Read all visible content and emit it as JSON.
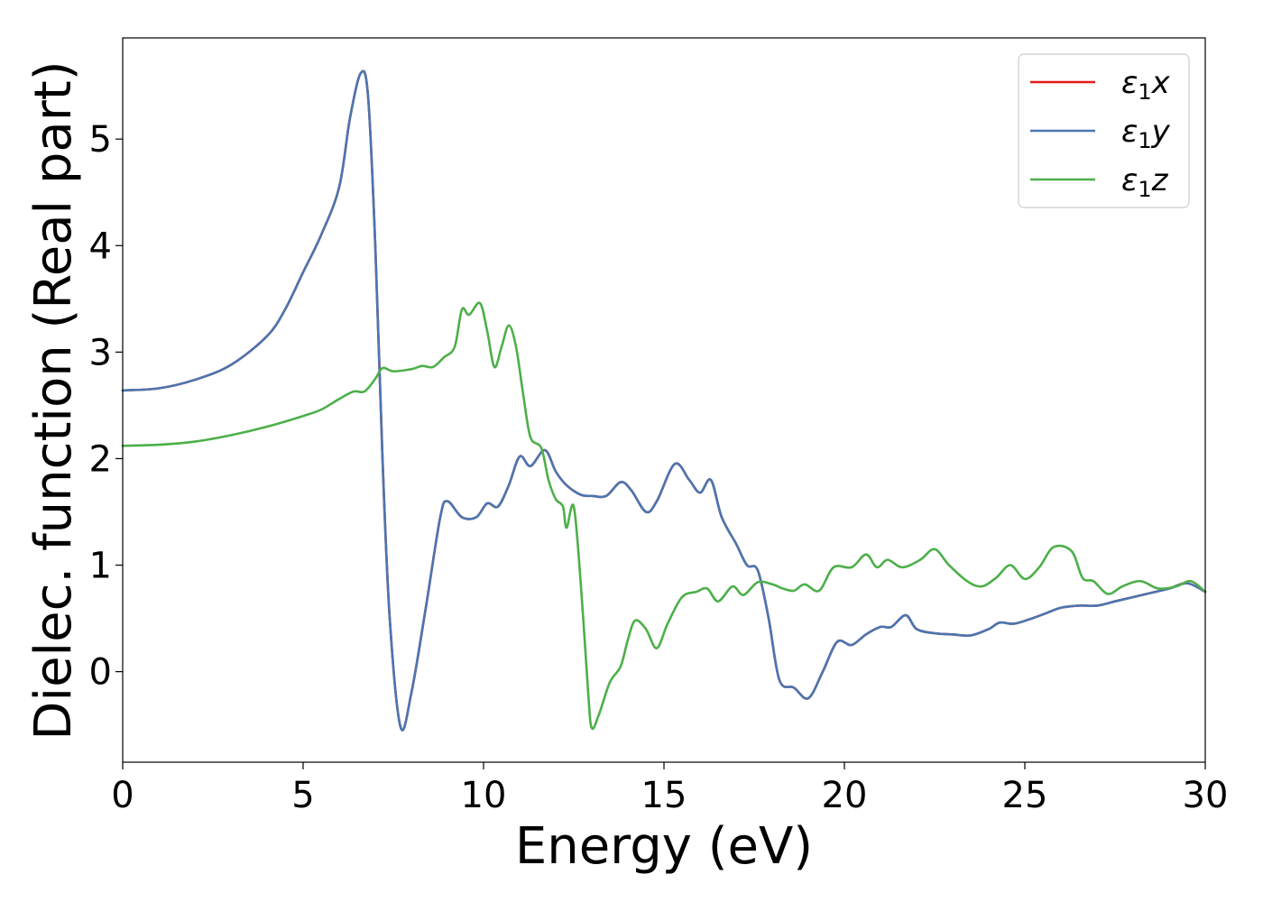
{
  "chart_data": {
    "type": "line",
    "title": "",
    "xlabel": "Energy (eV)",
    "ylabel": "Dielec. function (Real part)",
    "xlim": [
      0,
      30
    ],
    "ylim": [
      -0.85,
      5.95
    ],
    "xticks": [
      0,
      5,
      10,
      15,
      20,
      25,
      30
    ],
    "yticks": [
      0,
      1,
      2,
      3,
      4,
      5
    ],
    "grid": false,
    "legend_position": "top-right",
    "series": [
      {
        "name": "ε1x",
        "legend_main": "ε",
        "legend_sub": "1",
        "legend_suffix": "x",
        "color": "#e41a1c",
        "points": [
          [
            0,
            2.64
          ],
          [
            1,
            2.66
          ],
          [
            2,
            2.74
          ],
          [
            3,
            2.88
          ],
          [
            4,
            3.15
          ],
          [
            4.5,
            3.4
          ],
          [
            5,
            3.75
          ],
          [
            5.5,
            4.1
          ],
          [
            6,
            4.55
          ],
          [
            6.3,
            5.2
          ],
          [
            6.6,
            5.62
          ],
          [
            6.8,
            5.4
          ],
          [
            7,
            4.0
          ],
          [
            7.2,
            2.0
          ],
          [
            7.4,
            0.5
          ],
          [
            7.7,
            -0.52
          ],
          [
            8.0,
            -0.2
          ],
          [
            8.4,
            0.6
          ],
          [
            8.8,
            1.45
          ],
          [
            9.0,
            1.6
          ],
          [
            9.4,
            1.45
          ],
          [
            9.8,
            1.45
          ],
          [
            10.1,
            1.58
          ],
          [
            10.4,
            1.55
          ],
          [
            10.7,
            1.75
          ],
          [
            11.0,
            2.02
          ],
          [
            11.3,
            1.93
          ],
          [
            11.7,
            2.08
          ],
          [
            12.0,
            1.88
          ],
          [
            12.3,
            1.75
          ],
          [
            12.7,
            1.66
          ],
          [
            13.0,
            1.65
          ],
          [
            13.4,
            1.65
          ],
          [
            13.8,
            1.78
          ],
          [
            14.1,
            1.7
          ],
          [
            14.5,
            1.5
          ],
          [
            14.8,
            1.6
          ],
          [
            15.3,
            1.95
          ],
          [
            15.7,
            1.8
          ],
          [
            16.0,
            1.68
          ],
          [
            16.3,
            1.8
          ],
          [
            16.6,
            1.45
          ],
          [
            17.0,
            1.2
          ],
          [
            17.3,
            1.0
          ],
          [
            17.6,
            0.95
          ],
          [
            17.9,
            0.5
          ],
          [
            18.2,
            -0.08
          ],
          [
            18.6,
            -0.15
          ],
          [
            19.0,
            -0.25
          ],
          [
            19.4,
            0.0
          ],
          [
            19.8,
            0.28
          ],
          [
            20.2,
            0.25
          ],
          [
            20.6,
            0.35
          ],
          [
            21.0,
            0.42
          ],
          [
            21.3,
            0.42
          ],
          [
            21.7,
            0.53
          ],
          [
            22.0,
            0.4
          ],
          [
            22.5,
            0.36
          ],
          [
            23.0,
            0.35
          ],
          [
            23.5,
            0.34
          ],
          [
            24.0,
            0.4
          ],
          [
            24.3,
            0.46
          ],
          [
            24.7,
            0.45
          ],
          [
            25.2,
            0.5
          ],
          [
            25.6,
            0.55
          ],
          [
            26.0,
            0.6
          ],
          [
            26.5,
            0.62
          ],
          [
            27.0,
            0.62
          ],
          [
            27.5,
            0.66
          ],
          [
            28.0,
            0.7
          ],
          [
            28.5,
            0.74
          ],
          [
            29.0,
            0.78
          ],
          [
            29.5,
            0.83
          ],
          [
            30.0,
            0.75
          ]
        ]
      },
      {
        "name": "ε1y",
        "legend_main": "ε",
        "legend_sub": "1",
        "legend_suffix": "y",
        "color": "#4a76b0",
        "points": [
          [
            0,
            2.64
          ],
          [
            1,
            2.66
          ],
          [
            2,
            2.74
          ],
          [
            3,
            2.88
          ],
          [
            4,
            3.15
          ],
          [
            4.5,
            3.4
          ],
          [
            5,
            3.75
          ],
          [
            5.5,
            4.1
          ],
          [
            6,
            4.55
          ],
          [
            6.3,
            5.2
          ],
          [
            6.6,
            5.62
          ],
          [
            6.8,
            5.4
          ],
          [
            7,
            4.0
          ],
          [
            7.2,
            2.0
          ],
          [
            7.4,
            0.5
          ],
          [
            7.7,
            -0.52
          ],
          [
            8.0,
            -0.2
          ],
          [
            8.4,
            0.6
          ],
          [
            8.8,
            1.45
          ],
          [
            9.0,
            1.6
          ],
          [
            9.4,
            1.45
          ],
          [
            9.8,
            1.45
          ],
          [
            10.1,
            1.58
          ],
          [
            10.4,
            1.55
          ],
          [
            10.7,
            1.75
          ],
          [
            11.0,
            2.02
          ],
          [
            11.3,
            1.93
          ],
          [
            11.7,
            2.08
          ],
          [
            12.0,
            1.88
          ],
          [
            12.3,
            1.75
          ],
          [
            12.7,
            1.66
          ],
          [
            13.0,
            1.65
          ],
          [
            13.4,
            1.65
          ],
          [
            13.8,
            1.78
          ],
          [
            14.1,
            1.7
          ],
          [
            14.5,
            1.5
          ],
          [
            14.8,
            1.6
          ],
          [
            15.3,
            1.95
          ],
          [
            15.7,
            1.8
          ],
          [
            16.0,
            1.68
          ],
          [
            16.3,
            1.8
          ],
          [
            16.6,
            1.45
          ],
          [
            17.0,
            1.2
          ],
          [
            17.3,
            1.0
          ],
          [
            17.6,
            0.95
          ],
          [
            17.9,
            0.5
          ],
          [
            18.2,
            -0.08
          ],
          [
            18.6,
            -0.15
          ],
          [
            19.0,
            -0.25
          ],
          [
            19.4,
            0.0
          ],
          [
            19.8,
            0.28
          ],
          [
            20.2,
            0.25
          ],
          [
            20.6,
            0.35
          ],
          [
            21.0,
            0.42
          ],
          [
            21.3,
            0.42
          ],
          [
            21.7,
            0.53
          ],
          [
            22.0,
            0.4
          ],
          [
            22.5,
            0.36
          ],
          [
            23.0,
            0.35
          ],
          [
            23.5,
            0.34
          ],
          [
            24.0,
            0.4
          ],
          [
            24.3,
            0.46
          ],
          [
            24.7,
            0.45
          ],
          [
            25.2,
            0.5
          ],
          [
            25.6,
            0.55
          ],
          [
            26.0,
            0.6
          ],
          [
            26.5,
            0.62
          ],
          [
            27.0,
            0.62
          ],
          [
            27.5,
            0.66
          ],
          [
            28.0,
            0.7
          ],
          [
            28.5,
            0.74
          ],
          [
            29.0,
            0.78
          ],
          [
            29.5,
            0.83
          ],
          [
            30.0,
            0.75
          ]
        ]
      },
      {
        "name": "ε1z",
        "legend_main": "ε",
        "legend_sub": "1",
        "legend_suffix": "z",
        "color": "#4daf4a",
        "points": [
          [
            0,
            2.12
          ],
          [
            1,
            2.13
          ],
          [
            2,
            2.16
          ],
          [
            3,
            2.22
          ],
          [
            4,
            2.3
          ],
          [
            5,
            2.4
          ],
          [
            5.5,
            2.46
          ],
          [
            6.0,
            2.56
          ],
          [
            6.4,
            2.63
          ],
          [
            6.7,
            2.63
          ],
          [
            7.0,
            2.75
          ],
          [
            7.2,
            2.85
          ],
          [
            7.5,
            2.82
          ],
          [
            8.0,
            2.84
          ],
          [
            8.3,
            2.87
          ],
          [
            8.6,
            2.86
          ],
          [
            8.9,
            2.95
          ],
          [
            9.2,
            3.05
          ],
          [
            9.4,
            3.4
          ],
          [
            9.6,
            3.35
          ],
          [
            9.9,
            3.46
          ],
          [
            10.1,
            3.2
          ],
          [
            10.3,
            2.86
          ],
          [
            10.5,
            3.05
          ],
          [
            10.7,
            3.25
          ],
          [
            10.9,
            3.05
          ],
          [
            11.1,
            2.6
          ],
          [
            11.3,
            2.2
          ],
          [
            11.6,
            2.1
          ],
          [
            11.8,
            1.8
          ],
          [
            12.0,
            1.62
          ],
          [
            12.2,
            1.55
          ],
          [
            12.3,
            1.35
          ],
          [
            12.5,
            1.55
          ],
          [
            12.7,
            0.8
          ],
          [
            12.9,
            -0.2
          ],
          [
            13.0,
            -0.53
          ],
          [
            13.2,
            -0.4
          ],
          [
            13.5,
            -0.1
          ],
          [
            13.8,
            0.05
          ],
          [
            14.0,
            0.3
          ],
          [
            14.2,
            0.48
          ],
          [
            14.5,
            0.4
          ],
          [
            14.8,
            0.22
          ],
          [
            15.1,
            0.45
          ],
          [
            15.5,
            0.7
          ],
          [
            15.9,
            0.75
          ],
          [
            16.2,
            0.78
          ],
          [
            16.5,
            0.66
          ],
          [
            16.9,
            0.8
          ],
          [
            17.2,
            0.72
          ],
          [
            17.6,
            0.84
          ],
          [
            18.0,
            0.82
          ],
          [
            18.3,
            0.78
          ],
          [
            18.6,
            0.76
          ],
          [
            18.9,
            0.82
          ],
          [
            19.3,
            0.76
          ],
          [
            19.7,
            0.98
          ],
          [
            20.2,
            0.98
          ],
          [
            20.6,
            1.1
          ],
          [
            20.9,
            0.98
          ],
          [
            21.2,
            1.05
          ],
          [
            21.6,
            0.98
          ],
          [
            22.1,
            1.05
          ],
          [
            22.5,
            1.15
          ],
          [
            22.9,
            1.0
          ],
          [
            23.4,
            0.85
          ],
          [
            23.8,
            0.8
          ],
          [
            24.2,
            0.88
          ],
          [
            24.6,
            1.0
          ],
          [
            25.0,
            0.87
          ],
          [
            25.4,
            0.98
          ],
          [
            25.8,
            1.17
          ],
          [
            26.3,
            1.13
          ],
          [
            26.6,
            0.88
          ],
          [
            26.9,
            0.85
          ],
          [
            27.3,
            0.73
          ],
          [
            27.7,
            0.8
          ],
          [
            28.2,
            0.85
          ],
          [
            28.7,
            0.78
          ],
          [
            29.2,
            0.8
          ],
          [
            29.6,
            0.85
          ],
          [
            30.0,
            0.75
          ]
        ]
      }
    ]
  }
}
